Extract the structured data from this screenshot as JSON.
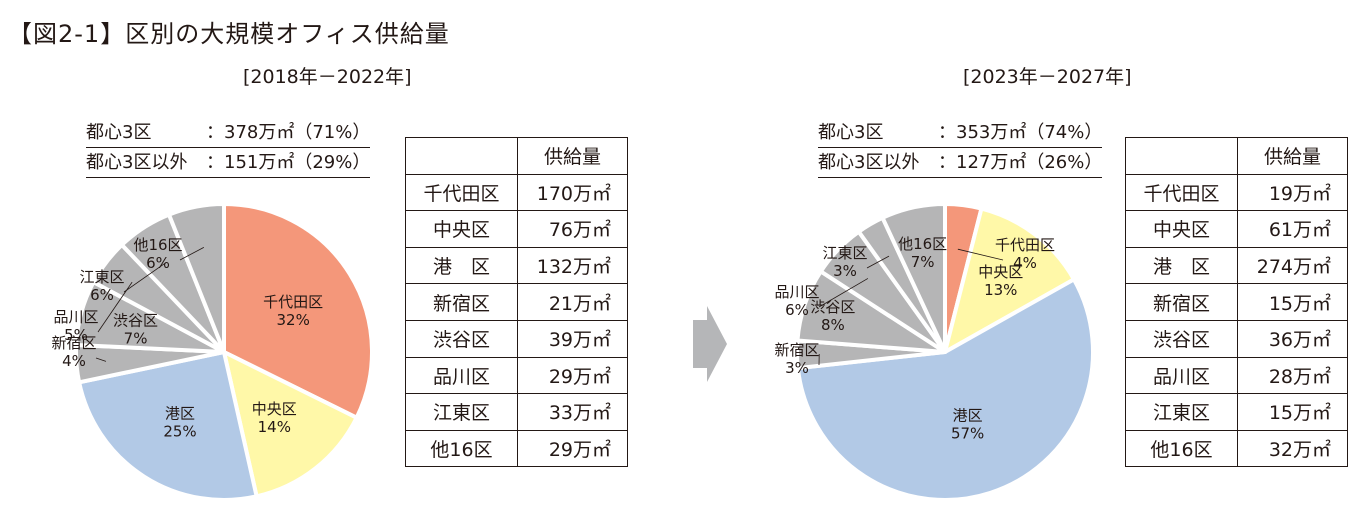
{
  "title": "【図2-1】区別の大規模オフィス供給量",
  "colors": {
    "chiyoda": "#f4977a",
    "chuo": "#fff8a8",
    "minato": "#b2c9e6",
    "others": "#b5b5b6",
    "slice_border": "#ffffff",
    "arrow": "#b5b6b8"
  },
  "icons": {
    "arrow": "right-arrow-icon"
  },
  "chart_data": [
    {
      "type": "pie",
      "period": "[2018年－2022年]",
      "summary": [
        {
          "label": "都心3区",
          "value": "：378万㎡（71%）"
        },
        {
          "label": "都心3区以外",
          "value": "：151万㎡（29%）"
        }
      ],
      "slices": [
        {
          "label": "千代田区",
          "pct": 32,
          "pct_label": "32%",
          "color": "#f4977a"
        },
        {
          "label": "中央区",
          "pct": 14,
          "pct_label": "14%",
          "color": "#fff8a8"
        },
        {
          "label": "港区",
          "pct": 25,
          "pct_label": "25%",
          "color": "#b2c9e6"
        },
        {
          "label": "新宿区",
          "pct": 4,
          "pct_label": "4%",
          "color": "#b5b5b6"
        },
        {
          "label": "渋谷区",
          "pct": 7,
          "pct_label": "7%",
          "color": "#b5b5b6"
        },
        {
          "label": "品川区",
          "pct": 5,
          "pct_label": "5%",
          "color": "#b5b5b6"
        },
        {
          "label": "江東区",
          "pct": 6,
          "pct_label": "6%",
          "color": "#b5b5b6"
        },
        {
          "label": "他16区",
          "pct": 6,
          "pct_label": "6%",
          "color": "#b5b5b6"
        }
      ],
      "table": {
        "header": [
          "",
          "供給量"
        ],
        "rows": [
          [
            "千代田区",
            "170万㎡"
          ],
          [
            "中央区",
            "76万㎡"
          ],
          [
            "港　区",
            "132万㎡"
          ],
          [
            "新宿区",
            "21万㎡"
          ],
          [
            "渋谷区",
            "39万㎡"
          ],
          [
            "品川区",
            "29万㎡"
          ],
          [
            "江東区",
            "33万㎡"
          ],
          [
            "他16区",
            "29万㎡"
          ]
        ]
      }
    },
    {
      "type": "pie",
      "period": "[2023年－2027年]",
      "summary": [
        {
          "label": "都心3区",
          "value": "：353万㎡（74%）"
        },
        {
          "label": "都心3区以外",
          "value": "：127万㎡（26%）"
        }
      ],
      "slices": [
        {
          "label": "千代田区",
          "pct": 4,
          "pct_label": "4%",
          "color": "#f4977a"
        },
        {
          "label": "中央区",
          "pct": 13,
          "pct_label": "13%",
          "color": "#fff8a8"
        },
        {
          "label": "港区",
          "pct": 57,
          "pct_label": "57%",
          "color": "#b2c9e6"
        },
        {
          "label": "新宿区",
          "pct": 3,
          "pct_label": "3%",
          "color": "#b5b5b6"
        },
        {
          "label": "渋谷区",
          "pct": 8,
          "pct_label": "8%",
          "color": "#b5b5b6"
        },
        {
          "label": "品川区",
          "pct": 6,
          "pct_label": "6%",
          "color": "#b5b5b6"
        },
        {
          "label": "江東区",
          "pct": 3,
          "pct_label": "3%",
          "color": "#b5b5b6"
        },
        {
          "label": "他16区",
          "pct": 7,
          "pct_label": "7%",
          "color": "#b5b5b6"
        }
      ],
      "table": {
        "header": [
          "",
          "供給量"
        ],
        "rows": [
          [
            "千代田区",
            "19万㎡"
          ],
          [
            "中央区",
            "61万㎡"
          ],
          [
            "港　区",
            "274万㎡"
          ],
          [
            "新宿区",
            "15万㎡"
          ],
          [
            "渋谷区",
            "36万㎡"
          ],
          [
            "品川区",
            "28万㎡"
          ],
          [
            "江東区",
            "15万㎡"
          ],
          [
            "他16区",
            "32万㎡"
          ]
        ]
      }
    }
  ]
}
